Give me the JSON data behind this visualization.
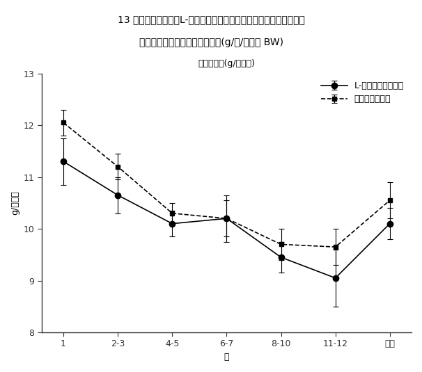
{
  "title_line1": "13 週間試験におけるL-カルニチン投与したイヌ及びコントロールの",
  "title_line2": "イヌに関する１日の食物摂取量(g/日/ポンド BW)",
  "subtitle": "食物摂取量(g/ポンド)",
  "xlabel": "週",
  "ylabel": "g/ポンド",
  "x_labels": [
    "1",
    "2-3",
    "4-5",
    "6-7",
    "8-10",
    "11-12",
    "平均"
  ],
  "carnitine_y": [
    11.3,
    10.65,
    10.1,
    10.2,
    9.45,
    9.05,
    10.1
  ],
  "carnitine_yerr": [
    0.45,
    0.35,
    0.25,
    0.35,
    0.3,
    0.55,
    0.3
  ],
  "control_y": [
    12.05,
    11.2,
    10.3,
    10.2,
    9.7,
    9.65,
    10.55
  ],
  "control_yerr": [
    0.25,
    0.25,
    0.2,
    0.45,
    0.3,
    0.35,
    0.35
  ],
  "ylim": [
    8,
    13
  ],
  "yticks": [
    8,
    9,
    10,
    11,
    12,
    13
  ],
  "legend_carnitine": "L-カルニチン投与群",
  "legend_control": "コントロール群",
  "line_color": "#000000",
  "background_color": "#ffffff",
  "title_fontsize": 10,
  "subtitle_fontsize": 9,
  "axis_fontsize": 9,
  "tick_fontsize": 9,
  "legend_fontsize": 9
}
